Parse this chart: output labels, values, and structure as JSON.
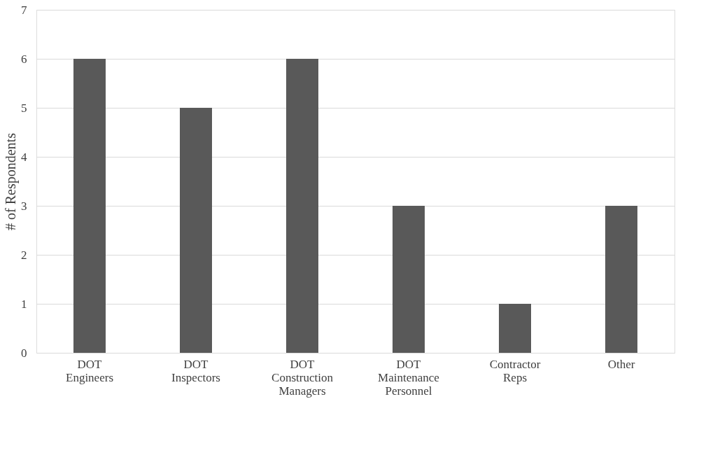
{
  "chart_data": {
    "type": "bar",
    "ylabel": "# of Respondents",
    "categories": [
      "DOT Engineers",
      "DOT Inspectors",
      "DOT Construction Managers",
      "DOT Maintenance Personnel",
      "Contractor Reps",
      "Other"
    ],
    "values": [
      6,
      5,
      6,
      3,
      1,
      3
    ],
    "color": "#595959",
    "ylim": [
      0,
      7
    ],
    "yticks": [
      0,
      1,
      2,
      3,
      4,
      5,
      6,
      7
    ],
    "grid": "y"
  }
}
